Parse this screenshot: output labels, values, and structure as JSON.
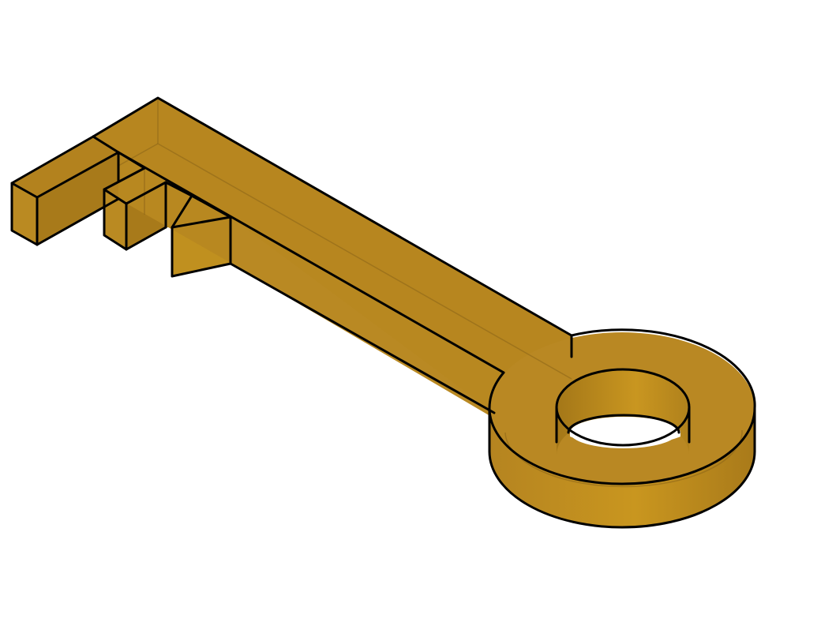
{
  "model": {
    "object_icon": "key-icon",
    "colors": {
      "face_top": "#b7861f",
      "face_side": "#b98923",
      "face_side_light": "#c9961f",
      "face_dark": "#9a7018",
      "edge": "#000000",
      "background": "#ffffff"
    }
  }
}
